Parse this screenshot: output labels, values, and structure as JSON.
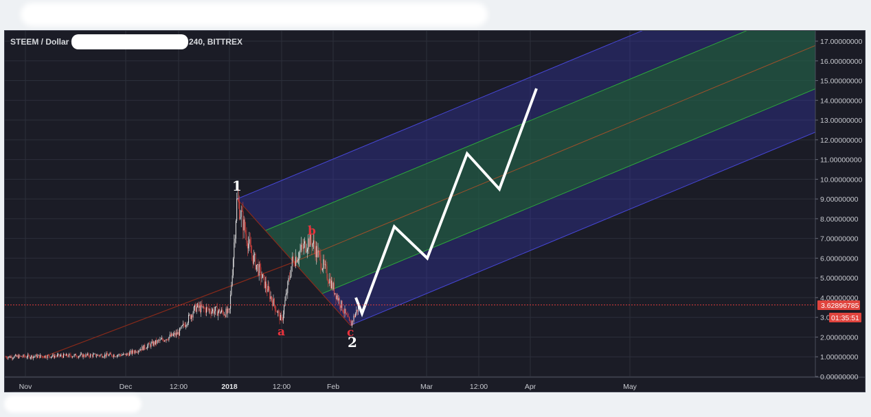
{
  "header": {
    "symbol_left": "STEEM / Dollar",
    "symbol_right": "240, BITTREX"
  },
  "price_axis": {
    "ticks": [
      "17.00000000",
      "16.00000000",
      "15.00000000",
      "14.00000000",
      "13.00000000",
      "12.00000000",
      "11.00000000",
      "10.00000000",
      "9.00000000",
      "8.00000000",
      "7.00000000",
      "6.00000000",
      "5.00000000",
      "4.00000000",
      "3.0",
      "2.00000000",
      "1.00000000",
      "0.00000000"
    ],
    "current_price": "3.62896785",
    "countdown": "01:35:51"
  },
  "time_axis": {
    "labels": [
      "Nov",
      "Dec",
      "12:00",
      "2018",
      "12:00",
      "Feb",
      "Mar",
      "12:00",
      "Apr",
      "May"
    ]
  },
  "wave_labels": {
    "one": "1",
    "two": "2",
    "a": "a",
    "b": "b",
    "c": "c"
  },
  "colors": {
    "background": "#1b1c26",
    "grid": "#2c2f3b",
    "up_candle": "#e8e8e8",
    "down_candle": "#e0443e",
    "pitchfork_outer": "#3434a8",
    "pitchfork_inner": "#1e6a28",
    "median_line": "#8a2a1a",
    "projection": "#ffffff",
    "price_line": "#e03c3c"
  },
  "chart_data": {
    "type": "line",
    "title": "STEEM / Dollar … 240, BITTREX",
    "xlabel": "",
    "ylabel": "",
    "ylim": [
      0,
      17
    ],
    "pivots": {
      "wave_1_high": 9.0,
      "wave_a_low": 2.8,
      "wave_b_high": 7.0,
      "wave_c_2_low": 2.6
    },
    "price_path": [
      {
        "t": "Nov",
        "price": 1.0
      },
      {
        "t": "Dec",
        "price": 1.1
      },
      {
        "t": "Dec 12:00",
        "price": 2.2
      },
      {
        "t": "Dec late",
        "price": 3.5
      },
      {
        "t": "2018",
        "price": 3.2
      },
      {
        "t": "2018 peak",
        "price": 9.0
      },
      {
        "t": "Jan",
        "price": 6.3
      },
      {
        "t": "Jan a",
        "price": 2.8
      },
      {
        "t": "Jan 12:00",
        "price": 5.8
      },
      {
        "t": "Jan b",
        "price": 7.0
      },
      {
        "t": "Feb",
        "price": 4.5
      },
      {
        "t": "Feb c",
        "price": 2.6
      },
      {
        "t": "Feb last",
        "price": 3.63
      }
    ],
    "projection": [
      {
        "t": "Feb",
        "price": 3.2
      },
      {
        "t": "Feb late",
        "price": 7.6
      },
      {
        "t": "Mar",
        "price": 6.0
      },
      {
        "t": "Mar 12:00",
        "price": 11.3
      },
      {
        "t": "Mar late",
        "price": 9.5
      },
      {
        "t": "Apr",
        "price": 14.6
      }
    ],
    "current_price": 3.62896785
  }
}
